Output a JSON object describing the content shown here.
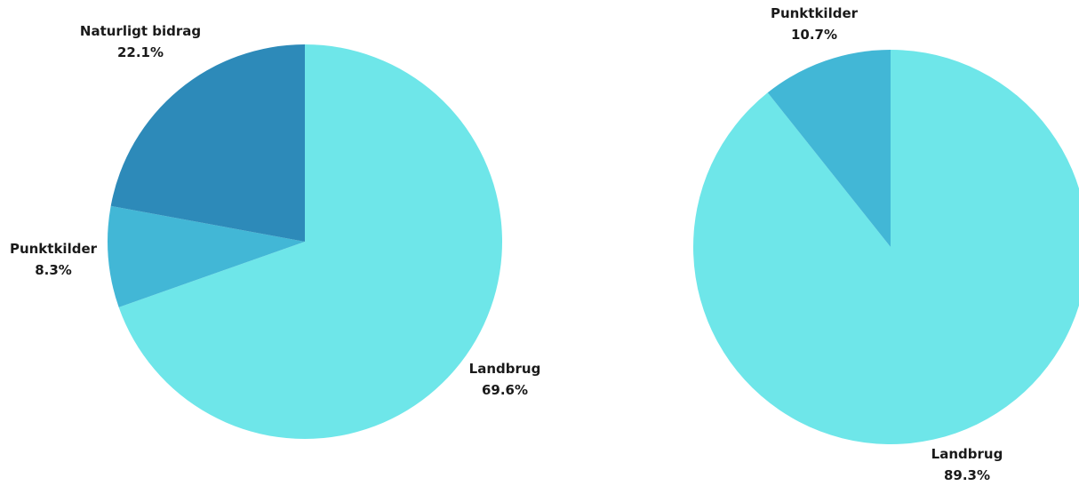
{
  "chart_data": [
    {
      "type": "pie",
      "slices": [
        {
          "label": "Landbrug",
          "value": 69.6,
          "value_label": "69.6%",
          "color": "#6ee6e9"
        },
        {
          "label": "Punktkilder",
          "value": 8.3,
          "value_label": "8.3%",
          "color": "#42b7d6"
        },
        {
          "label": "Naturligt bidrag",
          "value": 22.1,
          "value_label": "22.1%",
          "color": "#2d8ab9"
        }
      ],
      "start": "top",
      "direction": "clockwise",
      "legend": "none"
    },
    {
      "type": "pie",
      "slices": [
        {
          "label": "Landbrug",
          "value": 89.3,
          "value_label": "89.3%",
          "color": "#6ee6e9"
        },
        {
          "label": "Punktkilder",
          "value": 10.7,
          "value_label": "10.7%",
          "color": "#42b7d6"
        }
      ],
      "start": "top",
      "direction": "clockwise",
      "legend": "none"
    }
  ]
}
